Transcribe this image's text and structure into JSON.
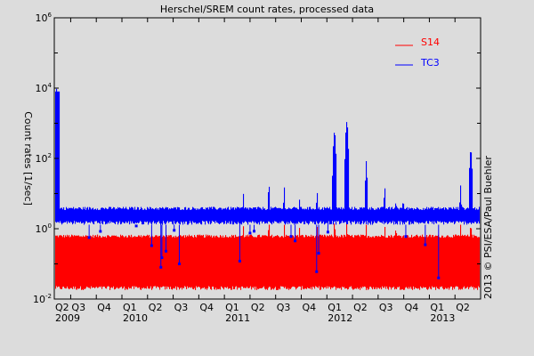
{
  "chart_data": {
    "type": "area",
    "title": "Herschel/SREM count rates, processed data",
    "ylabel": "Count rates [1/sec]",
    "xlabel": "",
    "yscale": "log",
    "ylim": [
      0.01,
      1000000
    ],
    "xlim": [
      "2009-05-05",
      "2013-07-01"
    ],
    "grid": false,
    "legend_position": "top-right",
    "y_ticks": [
      {
        "base": "10",
        "exp": "6",
        "value": 1000000
      },
      {
        "base": "10",
        "exp": "4",
        "value": 10000
      },
      {
        "base": "10",
        "exp": "2",
        "value": 100
      },
      {
        "base": "10",
        "exp": "0",
        "value": 1
      },
      {
        "base": "10",
        "exp": "-2",
        "value": 0.01
      }
    ],
    "x_ticks": [
      {
        "date": 2009.25,
        "quarter": "Q2",
        "year": "2009"
      },
      {
        "date": 2009.5,
        "quarter": "Q3",
        "year": ""
      },
      {
        "date": 2009.75,
        "quarter": "Q4",
        "year": ""
      },
      {
        "date": 2010.0,
        "quarter": "Q1",
        "year": "2010"
      },
      {
        "date": 2010.25,
        "quarter": "Q2",
        "year": ""
      },
      {
        "date": 2010.5,
        "quarter": "Q3",
        "year": ""
      },
      {
        "date": 2010.75,
        "quarter": "Q4",
        "year": ""
      },
      {
        "date": 2011.0,
        "quarter": "Q1",
        "year": "2011"
      },
      {
        "date": 2011.25,
        "quarter": "Q2",
        "year": ""
      },
      {
        "date": 2011.5,
        "quarter": "Q3",
        "year": ""
      },
      {
        "date": 2011.75,
        "quarter": "Q4",
        "year": ""
      },
      {
        "date": 2012.0,
        "quarter": "Q1",
        "year": "2012"
      },
      {
        "date": 2012.25,
        "quarter": "Q2",
        "year": ""
      },
      {
        "date": 2012.5,
        "quarter": "Q3",
        "year": ""
      },
      {
        "date": 2012.75,
        "quarter": "Q4",
        "year": ""
      },
      {
        "date": 2013.0,
        "quarter": "Q1",
        "year": "2013"
      },
      {
        "date": 2013.25,
        "quarter": "Q2",
        "year": ""
      }
    ],
    "series": [
      {
        "name": "S14",
        "color": "#ff0000",
        "baseline_range": [
          0.018,
          0.65
        ],
        "peaks": [
          {
            "date": 2011.18,
            "value": 1.2
          },
          {
            "date": 2011.43,
            "value": 1.5
          },
          {
            "date": 2011.58,
            "value": 1.3
          },
          {
            "date": 2011.73,
            "value": 1.1
          },
          {
            "date": 2011.9,
            "value": 1.2
          },
          {
            "date": 2012.07,
            "value": 1.6
          },
          {
            "date": 2012.19,
            "value": 1.6
          },
          {
            "date": 2012.38,
            "value": 1.3
          },
          {
            "date": 2012.56,
            "value": 1.2
          },
          {
            "date": 2012.67,
            "value": 1.1
          },
          {
            "date": 2013.3,
            "value": 1.3
          },
          {
            "date": 2013.4,
            "value": 1.4
          }
        ]
      },
      {
        "name": "TC3",
        "color": "#0000ff",
        "baseline_range": [
          1.3,
          4.0
        ],
        "peaks": [
          {
            "date": 2009.36,
            "value": 10000
          },
          {
            "date": 2011.18,
            "value": 10
          },
          {
            "date": 2011.43,
            "value": 18
          },
          {
            "date": 2011.58,
            "value": 15
          },
          {
            "date": 2011.73,
            "value": 7
          },
          {
            "date": 2011.9,
            "value": 11
          },
          {
            "date": 2012.07,
            "value": 570
          },
          {
            "date": 2012.19,
            "value": 1100
          },
          {
            "date": 2012.38,
            "value": 84
          },
          {
            "date": 2012.56,
            "value": 15
          },
          {
            "date": 2012.67,
            "value": 6.5
          },
          {
            "date": 2012.74,
            "value": 7
          },
          {
            "date": 2013.3,
            "value": 17
          },
          {
            "date": 2013.4,
            "value": 170
          }
        ],
        "dips": [
          {
            "date": 2009.68,
            "value": 0.56
          },
          {
            "date": 2009.79,
            "value": 0.84
          },
          {
            "date": 2010.14,
            "value": 1.2
          },
          {
            "date": 2010.29,
            "value": 0.33
          },
          {
            "date": 2010.38,
            "value": 0.08
          },
          {
            "date": 2010.39,
            "value": 0.15
          },
          {
            "date": 2010.43,
            "value": 0.23
          },
          {
            "date": 2010.51,
            "value": 0.9
          },
          {
            "date": 2010.56,
            "value": 0.1
          },
          {
            "date": 2011.15,
            "value": 0.12
          },
          {
            "date": 2011.25,
            "value": 0.75
          },
          {
            "date": 2011.29,
            "value": 0.85
          },
          {
            "date": 2011.65,
            "value": 0.6
          },
          {
            "date": 2011.69,
            "value": 0.45
          },
          {
            "date": 2011.9,
            "value": 0.06
          },
          {
            "date": 2011.92,
            "value": 0.2
          },
          {
            "date": 2012.01,
            "value": 0.8
          },
          {
            "date": 2012.77,
            "value": 0.6
          },
          {
            "date": 2012.96,
            "value": 0.35
          },
          {
            "date": 2013.09,
            "value": 0.04
          }
        ]
      }
    ],
    "credit": "2013 © PSI/ESA/Paul Buehler"
  }
}
